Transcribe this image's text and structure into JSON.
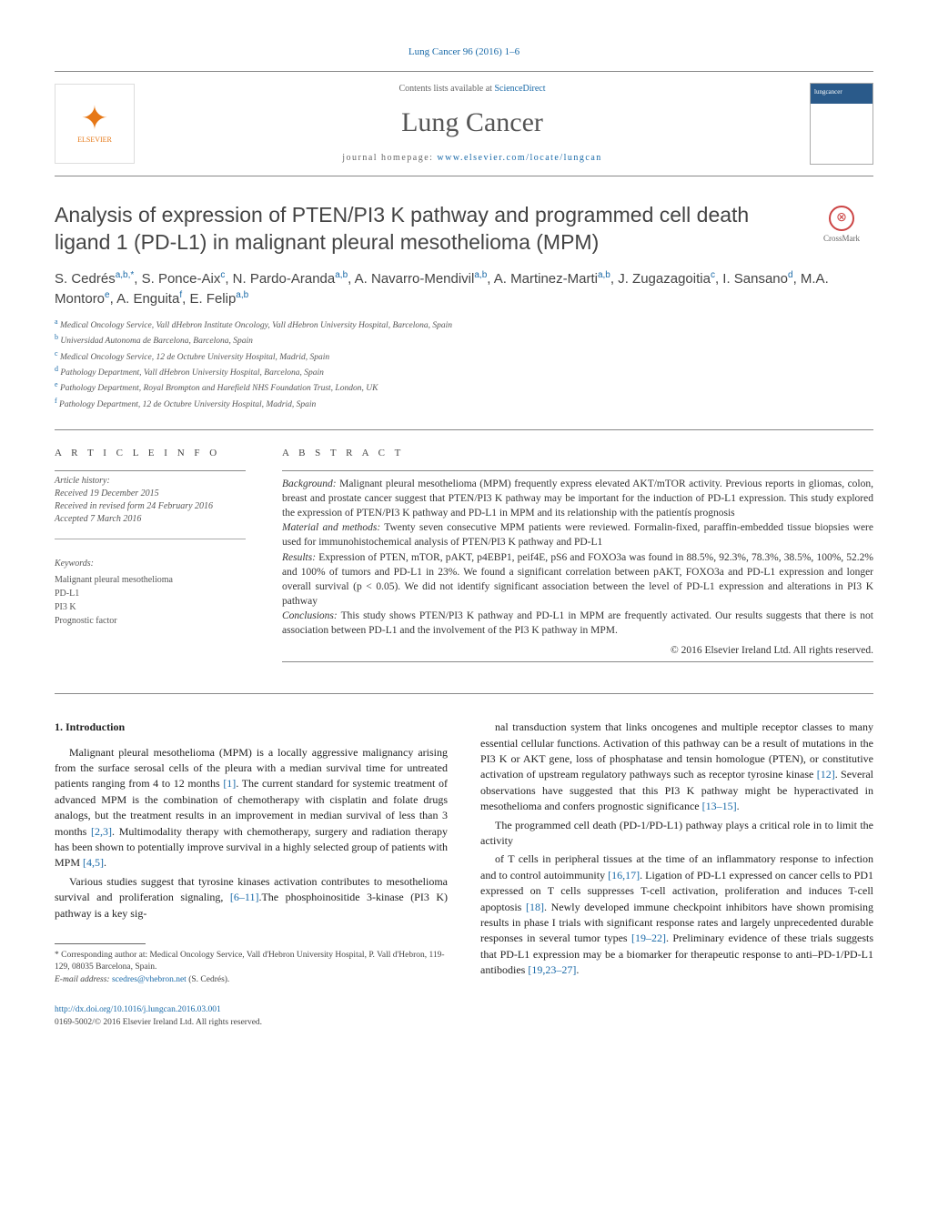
{
  "citation": "Lung Cancer 96 (2016) 1–6",
  "header": {
    "contents_prefix": "Contents lists available at ",
    "contents_link": "ScienceDirect",
    "journal": "Lung Cancer",
    "homepage_prefix": "journal homepage: ",
    "homepage_url": "www.elsevier.com/locate/lungcan",
    "publisher": "ELSEVIER",
    "cover_text": "lungcancer"
  },
  "crossmark_label": "CrossMark",
  "title": "Analysis of expression of PTEN/PI3 K pathway and programmed cell death ligand 1 (PD-L1) in malignant pleural mesothelioma (MPM)",
  "authors_html": "S. Cedrés<sup>a,b,*</sup>, S. Ponce-Aix<sup>c</sup>, N. Pardo-Aranda<sup>a,b</sup>, A. Navarro-Mendivil<sup>a,b</sup>, A. Martinez-Marti<sup>a,b</sup>, J. Zugazagoitia<sup>c</sup>, I. Sansano<sup>d</sup>, M.A. Montoro<sup>e</sup>, A. Enguita<sup>f</sup>, E. Felip<sup>a,b</sup>",
  "affiliations": [
    {
      "tag": "a",
      "text": "Medical Oncology Service, Vall dHebron Institute Oncology, Vall dHebron University Hospital, Barcelona, Spain"
    },
    {
      "tag": "b",
      "text": "Universidad Autonoma de Barcelona, Barcelona, Spain"
    },
    {
      "tag": "c",
      "text": "Medical Oncology Service, 12 de Octubre University Hospital, Madrid, Spain"
    },
    {
      "tag": "d",
      "text": "Pathology Department, Vall dHebron University Hospital, Barcelona, Spain"
    },
    {
      "tag": "e",
      "text": "Pathology Department, Royal Brompton and Harefield NHS Foundation Trust, London, UK"
    },
    {
      "tag": "f",
      "text": "Pathology Department, 12 de Octubre University Hospital, Madrid, Spain"
    }
  ],
  "article_info": {
    "heading": "a r t i c l e   i n f o",
    "history_label": "Article history:",
    "history": [
      "Received 19 December 2015",
      "Received in revised form 24 February 2016",
      "Accepted 7 March 2016"
    ],
    "keywords_label": "Keywords:",
    "keywords": [
      "Malignant pleural mesothelioma",
      "PD-L1",
      "PI3 K",
      "Prognostic factor"
    ]
  },
  "abstract": {
    "heading": "a b s t r a c t",
    "background_label": "Background:",
    "background": " Malignant pleural mesothelioma (MPM) frequently express elevated AKT/mTOR activity. Previous reports in gliomas, colon, breast and prostate cancer suggest that PTEN/PI3 K pathway may be important for the induction of PD-L1 expression. This study explored the expression of PTEN/PI3 K pathway and PD-L1 in MPM and its relationship with the patientís prognosis",
    "methods_label": "Material and methods:",
    "methods": " Twenty seven consecutive MPM patients were reviewed. Formalin-fixed, paraffin-embedded tissue biopsies were used for immunohistochemical analysis of PTEN/PI3 K pathway and PD-L1",
    "results_label": "Results:",
    "results": " Expression of PTEN, mTOR, pAKT, p4EBP1, peif4E, pS6 and FOXO3a was found in 88.5%, 92.3%, 78.3%, 38.5%, 100%, 52.2% and 100% of tumors and PD-L1 in 23%. We found a significant correlation between pAKT, FOXO3a and PD-L1 expression and longer overall survival (p < 0.05). We did not identify significant association between the level of PD-L1 expression and alterations in PI3 K pathway",
    "conclusions_label": "Conclusions:",
    "conclusions": " This study shows PTEN/PI3 K pathway and PD-L1 in MPM are frequently activated. Our results suggests that there is not association between PD-L1 and the involvement of the PI3 K pathway in MPM.",
    "copyright": "© 2016 Elsevier Ireland Ltd. All rights reserved."
  },
  "intro_heading": "1.  Introduction",
  "col1_paras": [
    "Malignant pleural mesothelioma (MPM) is a locally aggressive malignancy arising from the surface serosal cells of the pleura with a median survival time for untreated patients ranging from 4 to 12 months <span class='ref'>[1]</span>. The current standard for systemic treatment of advanced MPM is the combination of chemotherapy with cisplatin and folate drugs analogs, but the treatment results in an improvement in median survival of less than 3 months <span class='ref'>[2,3]</span>. Multimodality therapy with chemotherapy, surgery and radiation therapy has been shown to potentially improve survival in a highly selected group of patients with MPM <span class='ref'>[4,5]</span>.",
    "Various studies suggest that tyrosine kinases activation contributes to mesothelioma survival and proliferation signaling, <span class='ref'>[6–11]</span>.The phosphoinositide 3-kinase (PI3 K) pathway is a key sig-"
  ],
  "col2_paras": [
    "nal transduction system that links oncogenes and multiple receptor classes to many essential cellular functions. Activation of this pathway can be a result of mutations in the PI3 K or AKT gene, loss of phosphatase and tensin homologue (PTEN), or constitutive activation of upstream regulatory pathways such as receptor tyrosine kinase <span class='ref'>[12]</span>. Several observations have suggested that this PI3 K pathway might be hyperactivated in mesothelioma and confers prognostic significance <span class='ref'>[13–15]</span>.",
    "The programmed cell death (PD-1/PD-L1) pathway plays a critical role in to limit the activity",
    "of T cells in peripheral tissues at the time of an inflammatory response to infection and to control autoimmunity <span class='ref'>[16,17]</span>. Ligation of PD-L1 expressed on cancer cells to PD1 expressed on T cells suppresses T-cell activation, proliferation and induces T-cell apoptosis <span class='ref'>[18]</span>. Newly developed immune checkpoint inhibitors have shown promising results in phase I trials with significant response rates and largely unprecedented durable responses in several tumor types <span class='ref'>[19–22]</span>. Preliminary evidence of these trials suggests that PD-L1 expression may be a biomarker for therapeutic response to anti–PD-1/PD-L1 antibodies <span class='ref'>[19,23–27]</span>."
  ],
  "footnote": {
    "corresponding": "* Corresponding author at: Medical Oncology Service, Vall d'Hebron University Hospital, P. Vall d'Hebron, 119-129, 08035 Barcelona, Spain.",
    "email_label": "E-mail address:",
    "email": "scedres@vhebron.net",
    "email_suffix": " (S. Cedrés)."
  },
  "doi": {
    "url": "http://dx.doi.org/10.1016/j.lungcan.2016.03.001",
    "issn_line": "0169-5002/© 2016 Elsevier Ireland Ltd. All rights reserved."
  }
}
